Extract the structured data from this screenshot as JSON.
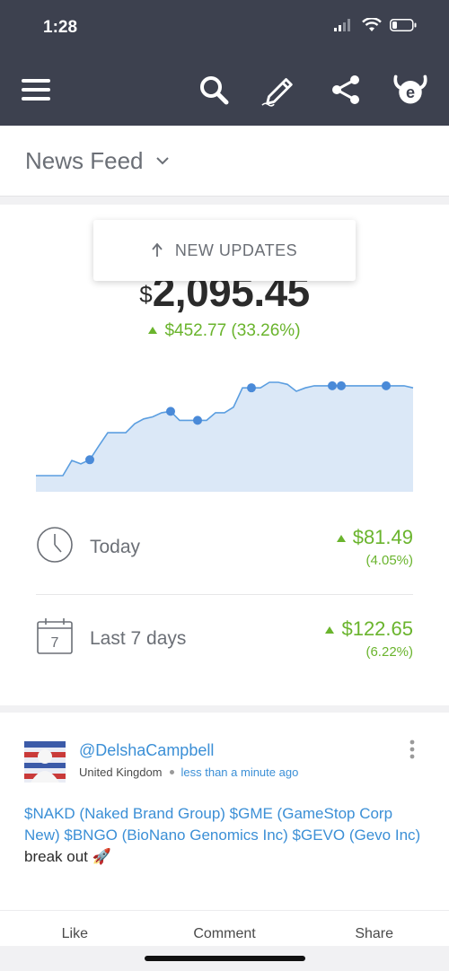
{
  "status_bar": {
    "time": "1:28"
  },
  "app_bar": {
    "icons": [
      "menu-icon",
      "search-icon",
      "edit-pen-icon",
      "share-icon",
      "etoro-logo-icon"
    ]
  },
  "feed": {
    "title": "News Feed"
  },
  "portfolio": {
    "currency_symbol": "$",
    "balance": "2,095.45",
    "total_change": "$452.77 (33.26%)",
    "new_updates_label": "NEW UPDATES",
    "today": {
      "label": "Today",
      "value": "$81.49",
      "percent": "(4.05%)"
    },
    "last_7_days": {
      "label": "Last 7 days",
      "value": "$122.65",
      "percent": "(6.22%)",
      "calendar_day": "7"
    }
  },
  "chart_data": {
    "type": "area",
    "x": [
      0,
      1,
      2,
      3,
      4,
      5,
      6,
      7,
      8,
      9,
      10,
      11,
      12,
      13,
      14,
      15,
      16,
      17,
      18,
      19,
      20,
      21,
      22,
      23,
      24,
      25,
      26,
      27,
      28,
      29,
      30,
      31,
      32,
      33,
      34,
      35,
      36,
      37,
      38,
      39,
      40,
      41,
      42
    ],
    "values": [
      1643,
      1643,
      1643,
      1643,
      1665,
      1660,
      1666,
      1686,
      1705,
      1705,
      1705,
      1718,
      1725,
      1728,
      1734,
      1736,
      1723,
      1723,
      1723,
      1723,
      1734,
      1734,
      1742,
      1770,
      1770,
      1770,
      1778,
      1778,
      1775,
      1765,
      1770,
      1773,
      1773,
      1773,
      1773,
      1773,
      1773,
      1773,
      1773,
      1773,
      1773,
      1773,
      1770
    ],
    "markers": [
      6,
      15,
      18,
      24,
      33,
      34,
      39
    ],
    "title": "",
    "xlabel": "",
    "ylabel": "",
    "line_color": "#5b9ee0",
    "fill_color": "#dbe8f7"
  },
  "post": {
    "username": "@DelshaCampbell",
    "country": "United Kingdom",
    "time_ago": "less than a minute ago",
    "text_tags": "$NAKD (Naked Brand Group) $GME (GameStop Corp New) $BNGO (BioNano Genomics Inc) $GEVO (Gevo Inc)",
    "text_suffix": "break out",
    "emoji": "🚀",
    "actions": {
      "like": "Like",
      "comment": "Comment",
      "share": "Share"
    }
  },
  "colors": {
    "header_bg": "#3d414f",
    "positive": "#6ab42d",
    "link": "#3b8fd6"
  }
}
